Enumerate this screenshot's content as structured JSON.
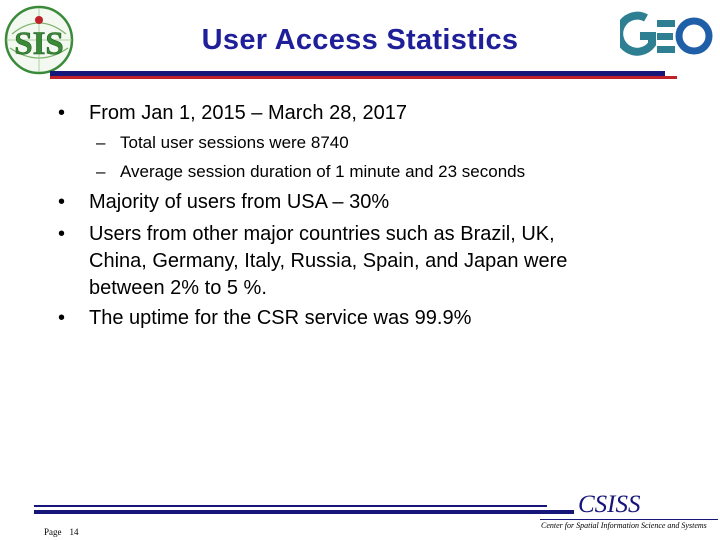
{
  "slide": {
    "title": "User Access Statistics",
    "logos": {
      "left_text": "SIS",
      "right_text": "GEO"
    },
    "bullets": [
      {
        "text": "From Jan 1, 2015 – March 28, 2017",
        "sub": [
          "Total user sessions were 8740",
          "Average session duration of 1 minute and 23 seconds"
        ]
      },
      {
        "text": "Majority of users from USA – 30%"
      },
      {
        "lines": [
          "Users from other major countries such as Brazil, UK,",
          "China, Germany, Italy, Russia, Spain, and Japan were",
          "between 2% to 5 %."
        ]
      },
      {
        "text": "The uptime for the CSR service was 99.9%"
      }
    ],
    "bullet_char": "•",
    "sub_char": "–"
  },
  "footer": {
    "page_label": "Page",
    "page_number": "14",
    "org_short": "CSISS",
    "org_full": "Center for Spatial Information Science and Systems"
  },
  "colors": {
    "title": "#1f1f9a",
    "rule_blue": "#15157a",
    "rule_red": "#c0202a",
    "logo_green": "#3a8a3a",
    "logo_red": "#c0202a",
    "geo_teal": "#2f7f93",
    "geo_blue": "#1f5fa8"
  }
}
